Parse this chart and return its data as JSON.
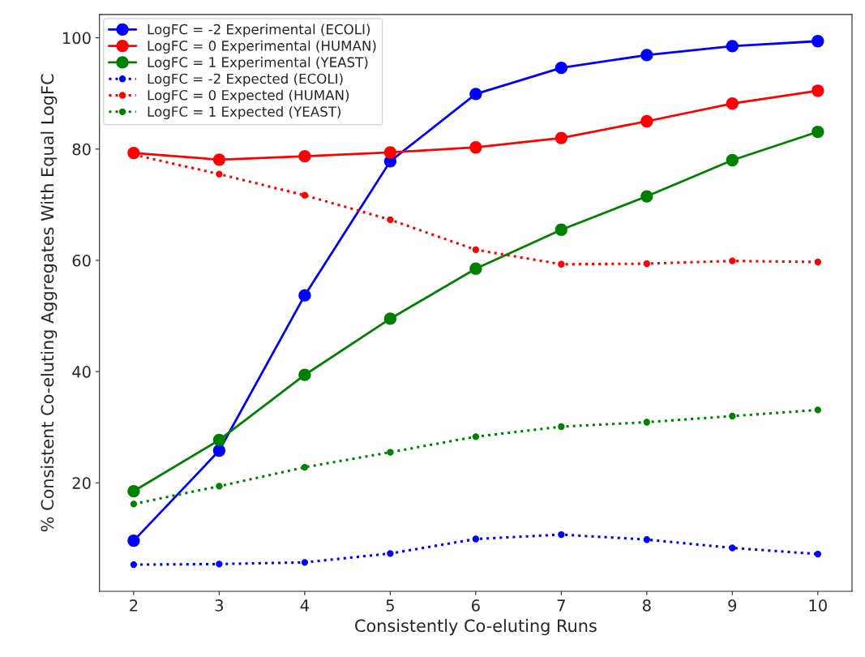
{
  "chart_data": {
    "type": "line",
    "xlabel": "Consistently Co-eluting Runs",
    "ylabel": "% Consistent Co-eluting Aggregates With Equal LogFC",
    "x": [
      2,
      3,
      4,
      5,
      6,
      7,
      8,
      9,
      10
    ],
    "xlim": [
      1.6,
      10.4
    ],
    "xticks": [
      2,
      3,
      4,
      5,
      6,
      7,
      8,
      9,
      10
    ],
    "ylim": [
      0.5,
      104.2
    ],
    "yticks": [
      20,
      40,
      60,
      80,
      100
    ],
    "grid": false,
    "legend": "top left",
    "series": [
      {
        "name": "LogFC = -2 Experimental (ECOLI)",
        "color": "#0000ff",
        "marker": "circle",
        "line_style": "solid",
        "values": [
          9.6,
          25.8,
          53.7,
          77.8,
          89.9,
          94.6,
          96.9,
          98.5,
          99.4
        ]
      },
      {
        "name": "LogFC = 0 Experimental (HUMAN)",
        "color": "#ff0000",
        "marker": "circle",
        "line_style": "solid",
        "values": [
          79.3,
          78.1,
          78.7,
          79.4,
          80.3,
          82.0,
          85.0,
          88.2,
          90.5
        ]
      },
      {
        "name": "LogFC = 1 Experimental (YEAST)",
        "color": "#008000",
        "marker": "circle",
        "line_style": "solid",
        "values": [
          18.5,
          27.7,
          39.4,
          49.5,
          58.5,
          65.5,
          71.5,
          78.0,
          83.1
        ]
      },
      {
        "name": "LogFC = -2 Expected (ECOLI)",
        "color": "#0000ff",
        "marker": "circle",
        "line_style": "dotted",
        "values": [
          5.3,
          5.4,
          5.7,
          7.3,
          9.9,
          10.7,
          9.8,
          8.3,
          7.2
        ]
      },
      {
        "name": "LogFC = 0 Expected (HUMAN)",
        "color": "#ff0000",
        "marker": "circle",
        "line_style": "dotted",
        "values": [
          79.0,
          75.5,
          71.7,
          67.3,
          61.9,
          59.3,
          59.4,
          59.9,
          59.7
        ]
      },
      {
        "name": "LogFC = 1 Expected (YEAST)",
        "color": "#008000",
        "marker": "circle",
        "line_style": "dotted",
        "values": [
          16.2,
          19.4,
          22.8,
          25.5,
          28.3,
          30.1,
          30.9,
          32.0,
          33.1
        ]
      }
    ]
  }
}
